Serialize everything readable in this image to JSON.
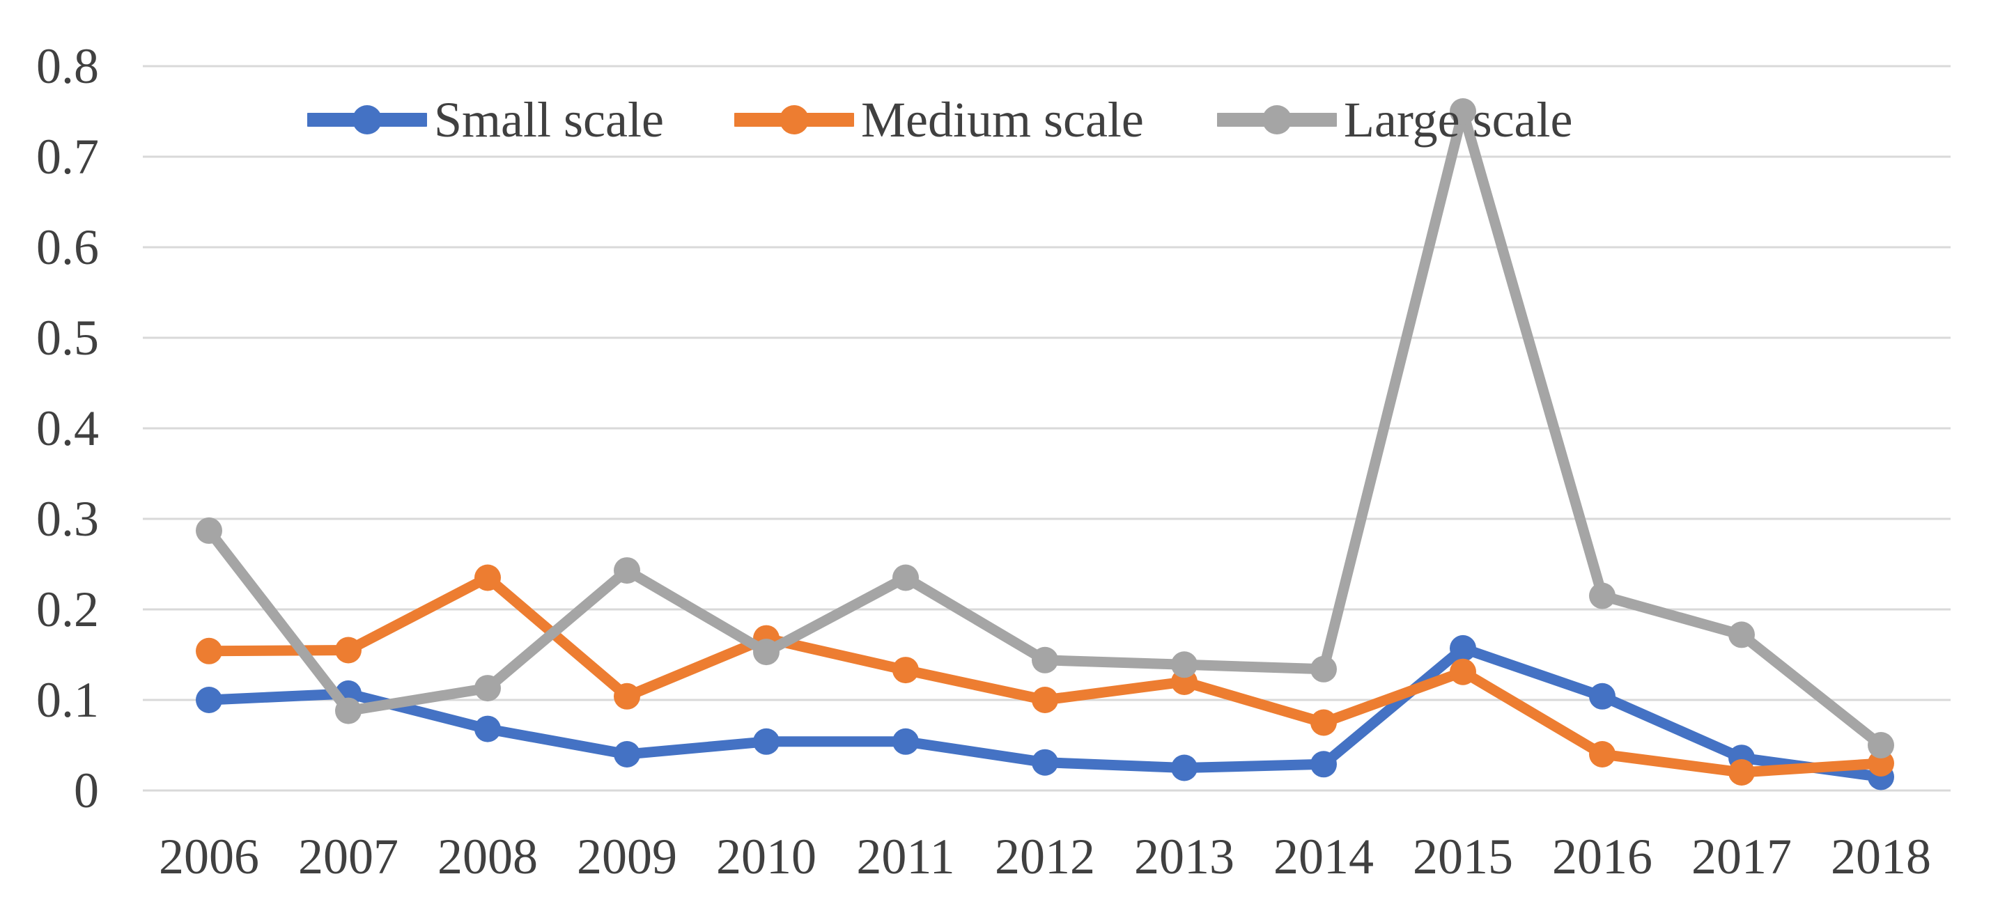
{
  "chart_data": {
    "type": "line",
    "title": "",
    "xlabel": "",
    "ylabel": "",
    "categories": [
      "2006",
      "2007",
      "2008",
      "2009",
      "2010",
      "2011",
      "2012",
      "2013",
      "2014",
      "2015",
      "2016",
      "2017",
      "2018"
    ],
    "series": [
      {
        "name": "Small scale",
        "color": "#4472C4",
        "values": [
          0.1,
          0.107,
          0.068,
          0.04,
          0.054,
          0.054,
          0.031,
          0.025,
          0.029,
          0.157,
          0.104,
          0.036,
          0.015
        ]
      },
      {
        "name": "Medium scale",
        "color": "#ED7D31",
        "values": [
          0.154,
          0.155,
          0.235,
          0.104,
          0.168,
          0.133,
          0.1,
          0.12,
          0.075,
          0.131,
          0.04,
          0.02,
          0.03
        ]
      },
      {
        "name": "Large scale",
        "color": "#A5A5A5",
        "values": [
          0.287,
          0.088,
          0.113,
          0.243,
          0.153,
          0.235,
          0.144,
          0.139,
          0.134,
          0.75,
          0.215,
          0.172,
          0.05
        ]
      }
    ],
    "ylim": [
      0,
      0.8
    ],
    "ytick_step": 0.1,
    "ytick_labels": [
      "0",
      "0.1",
      "0.2",
      "0.3",
      "0.4",
      "0.5",
      "0.6",
      "0.7",
      "0.8"
    ],
    "grid": "horizontal",
    "legend_position": "top",
    "marker": "circle",
    "colors": {
      "axis_text": "#404040",
      "gridline": "#D9D9D9",
      "background": "#FFFFFF"
    }
  }
}
